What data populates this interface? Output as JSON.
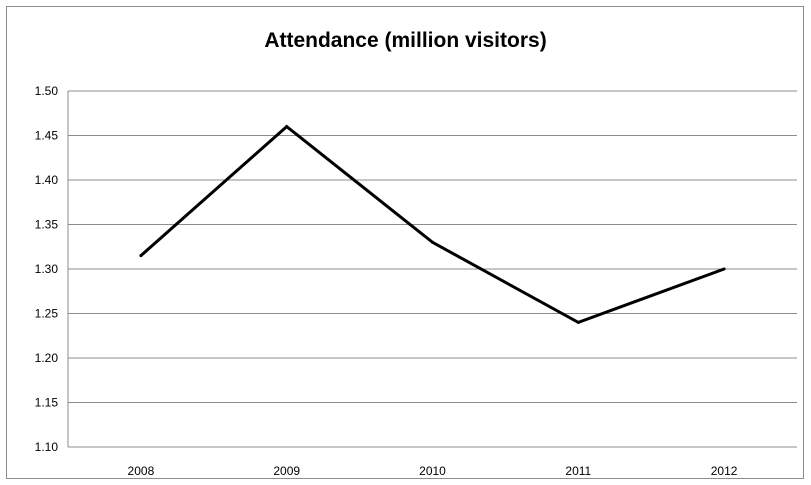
{
  "chart_data": {
    "type": "line",
    "title": "Attendance (million visitors)",
    "xlabel": "",
    "ylabel": "",
    "categories": [
      "2008",
      "2009",
      "2010",
      "2011",
      "2012"
    ],
    "series": [
      {
        "values": [
          1.315,
          1.46,
          1.33,
          1.24,
          1.3
        ],
        "color": "#000000"
      }
    ],
    "ylim": [
      1.1,
      1.5
    ],
    "y_ticks": [
      "1.10",
      "1.15",
      "1.20",
      "1.25",
      "1.30",
      "1.35",
      "1.40",
      "1.45",
      "1.50"
    ],
    "grid": true,
    "legend": "none"
  }
}
